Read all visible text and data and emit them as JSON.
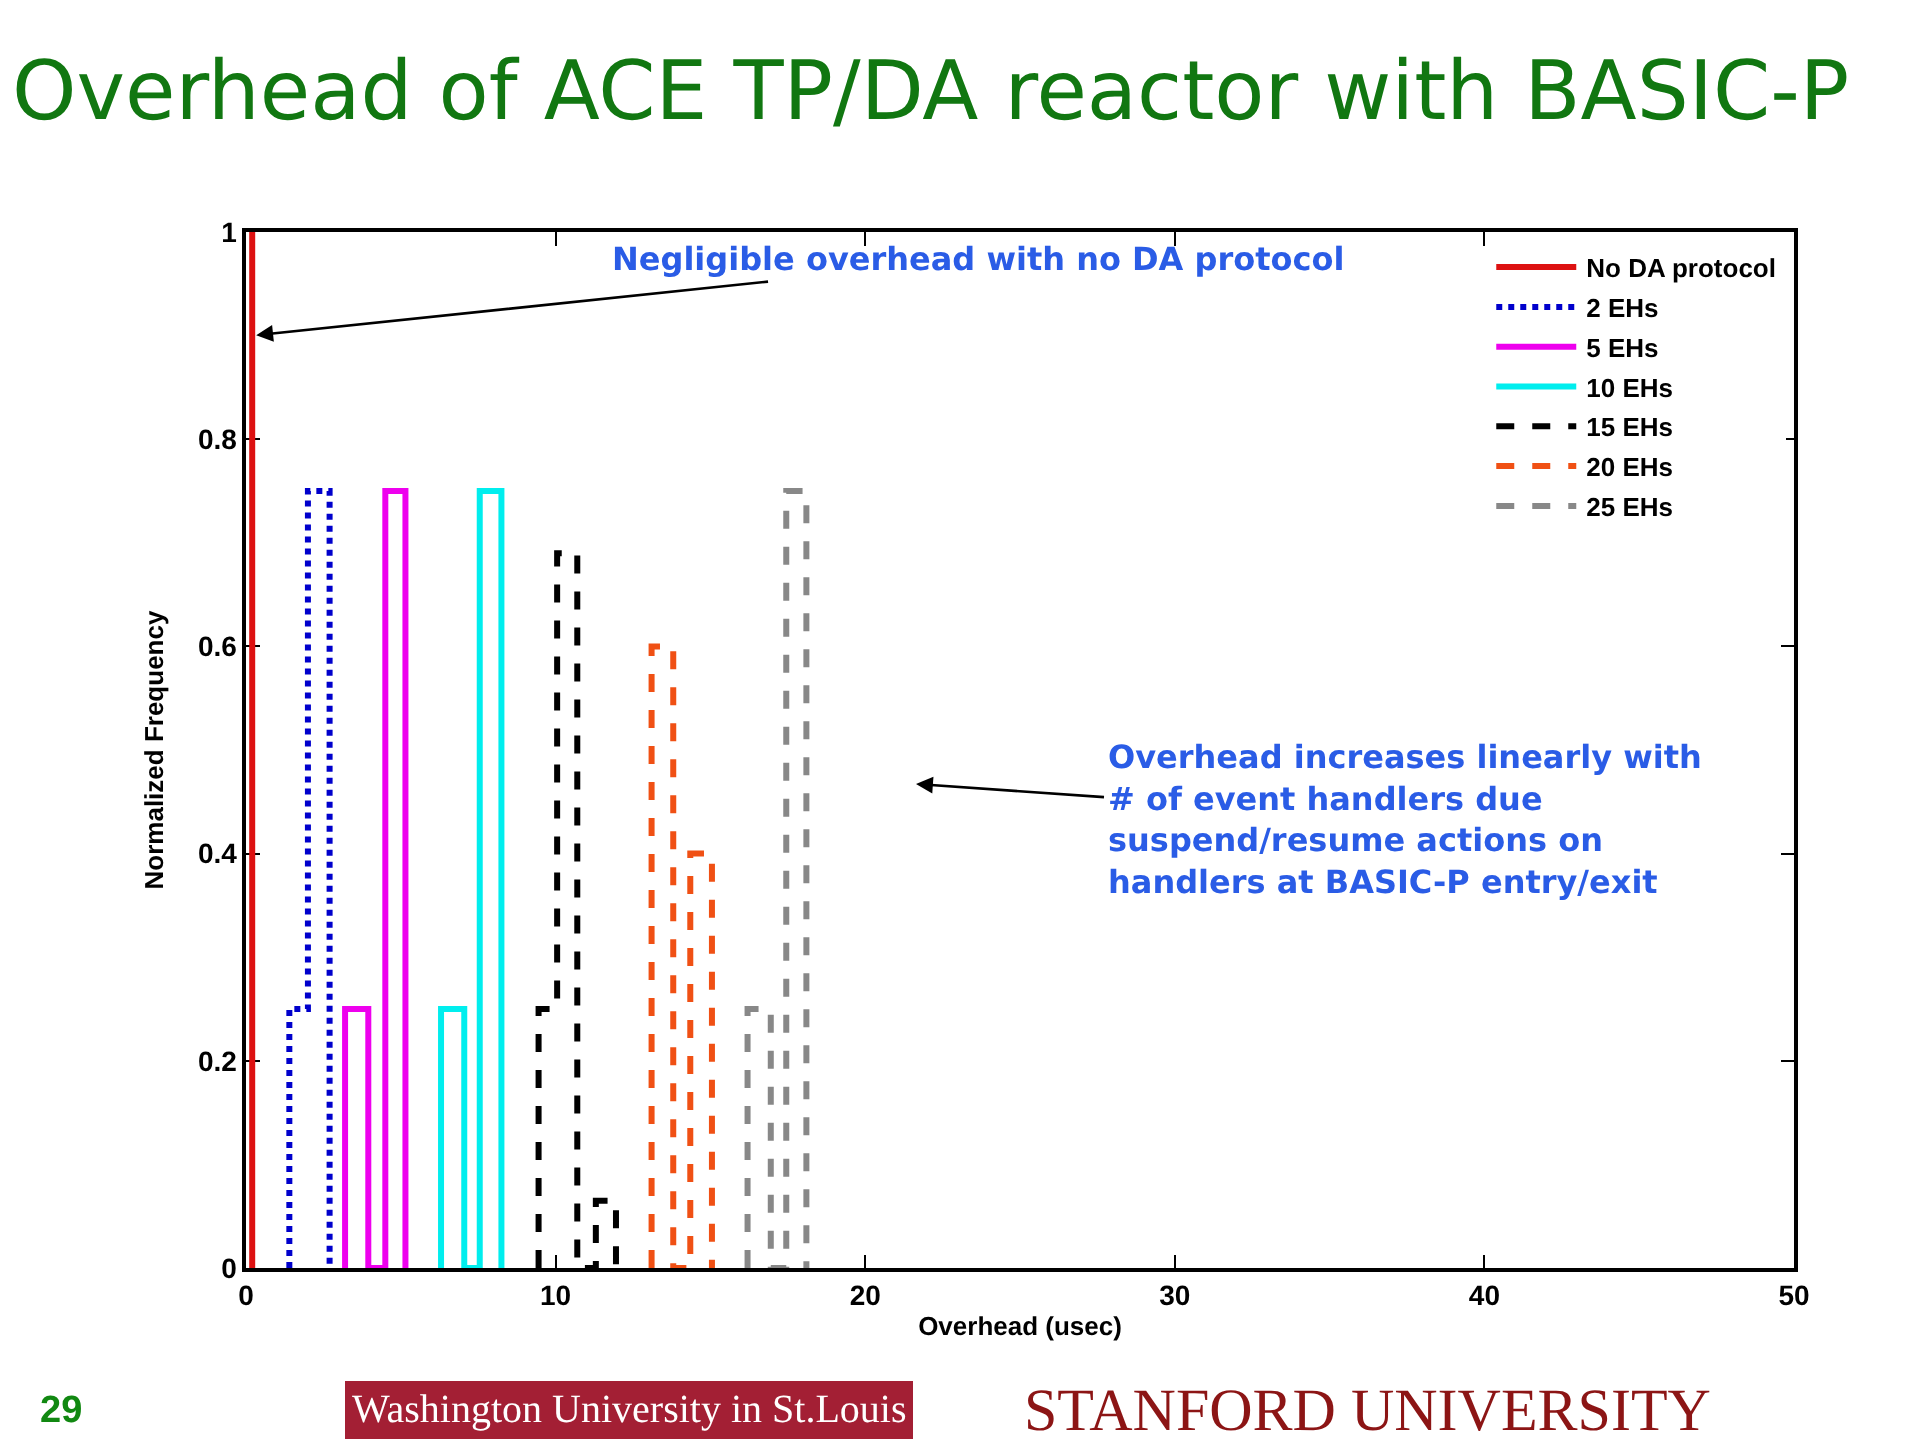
{
  "chart_data": {
    "type": "step",
    "title": "Overhead of ACE TP/DA reactor with BASIC-P",
    "xlabel": "Overhead (usec)",
    "ylabel": "Normalized Frequency",
    "xlim": [
      0,
      50
    ],
    "xticks": [
      0,
      10,
      20,
      30,
      40,
      50
    ],
    "ylim": [
      0,
      1
    ],
    "yticks": [
      0,
      0.2,
      0.4,
      0.6,
      0.8,
      1
    ],
    "legend": "top right",
    "series": [
      {
        "name": "No DA protocol",
        "color": "#dd1111",
        "line_style": "solid",
        "x": [
          0.2,
          0.2
        ],
        "values": [
          0,
          1
        ]
      },
      {
        "name": "2 EHs",
        "color": "#0000cc",
        "line_style": "dotted",
        "x": [
          1.4,
          1.4,
          2.0,
          2.7
        ],
        "values": [
          0,
          0.25,
          0.75,
          0
        ]
      },
      {
        "name": "5 EHs",
        "color": "#ee00ee",
        "line_style": "solid",
        "x": [
          3.2,
          3.2,
          3.95,
          4.5,
          5.15
        ],
        "values": [
          0,
          0.25,
          0,
          0.75,
          0
        ]
      },
      {
        "name": "10 EHs",
        "color": "#00eeee",
        "line_style": "solid",
        "x": [
          6.3,
          6.3,
          7.05,
          7.55,
          8.25
        ],
        "values": [
          0,
          0.25,
          0,
          0.75,
          0
        ]
      },
      {
        "name": "15 EHs",
        "color": "#000000",
        "line_style": "dashed",
        "x": [
          9.45,
          9.45,
          10.05,
          10.7,
          11.3,
          11.95
        ],
        "values": [
          0,
          0.25,
          0.69,
          0,
          0.065,
          0
        ]
      },
      {
        "name": "20 EHs",
        "color": "#f05014",
        "line_style": "dashed",
        "x": [
          13.1,
          13.1,
          13.8,
          14.35,
          15.05
        ],
        "values": [
          0,
          0.6,
          0,
          0.4,
          0
        ]
      },
      {
        "name": "25 EHs",
        "color": "#888888",
        "line_style": "dashed",
        "x": [
          16.2,
          16.2,
          16.95,
          17.45,
          18.1
        ],
        "values": [
          0,
          0.25,
          0,
          0.75,
          0
        ]
      }
    ],
    "annotations": [
      {
        "text": "Negligible overhead with no DA protocol",
        "x": 0.2,
        "y": 0.9
      },
      "Overhead increases linearly with\n# of event handlers due\nsuspend/resume actions on\nhandlers at BASIC-P entry/exit",
      "29",
      "Washington University in St.Louis",
      "STANFORD UNIVERSITY"
    ]
  }
}
